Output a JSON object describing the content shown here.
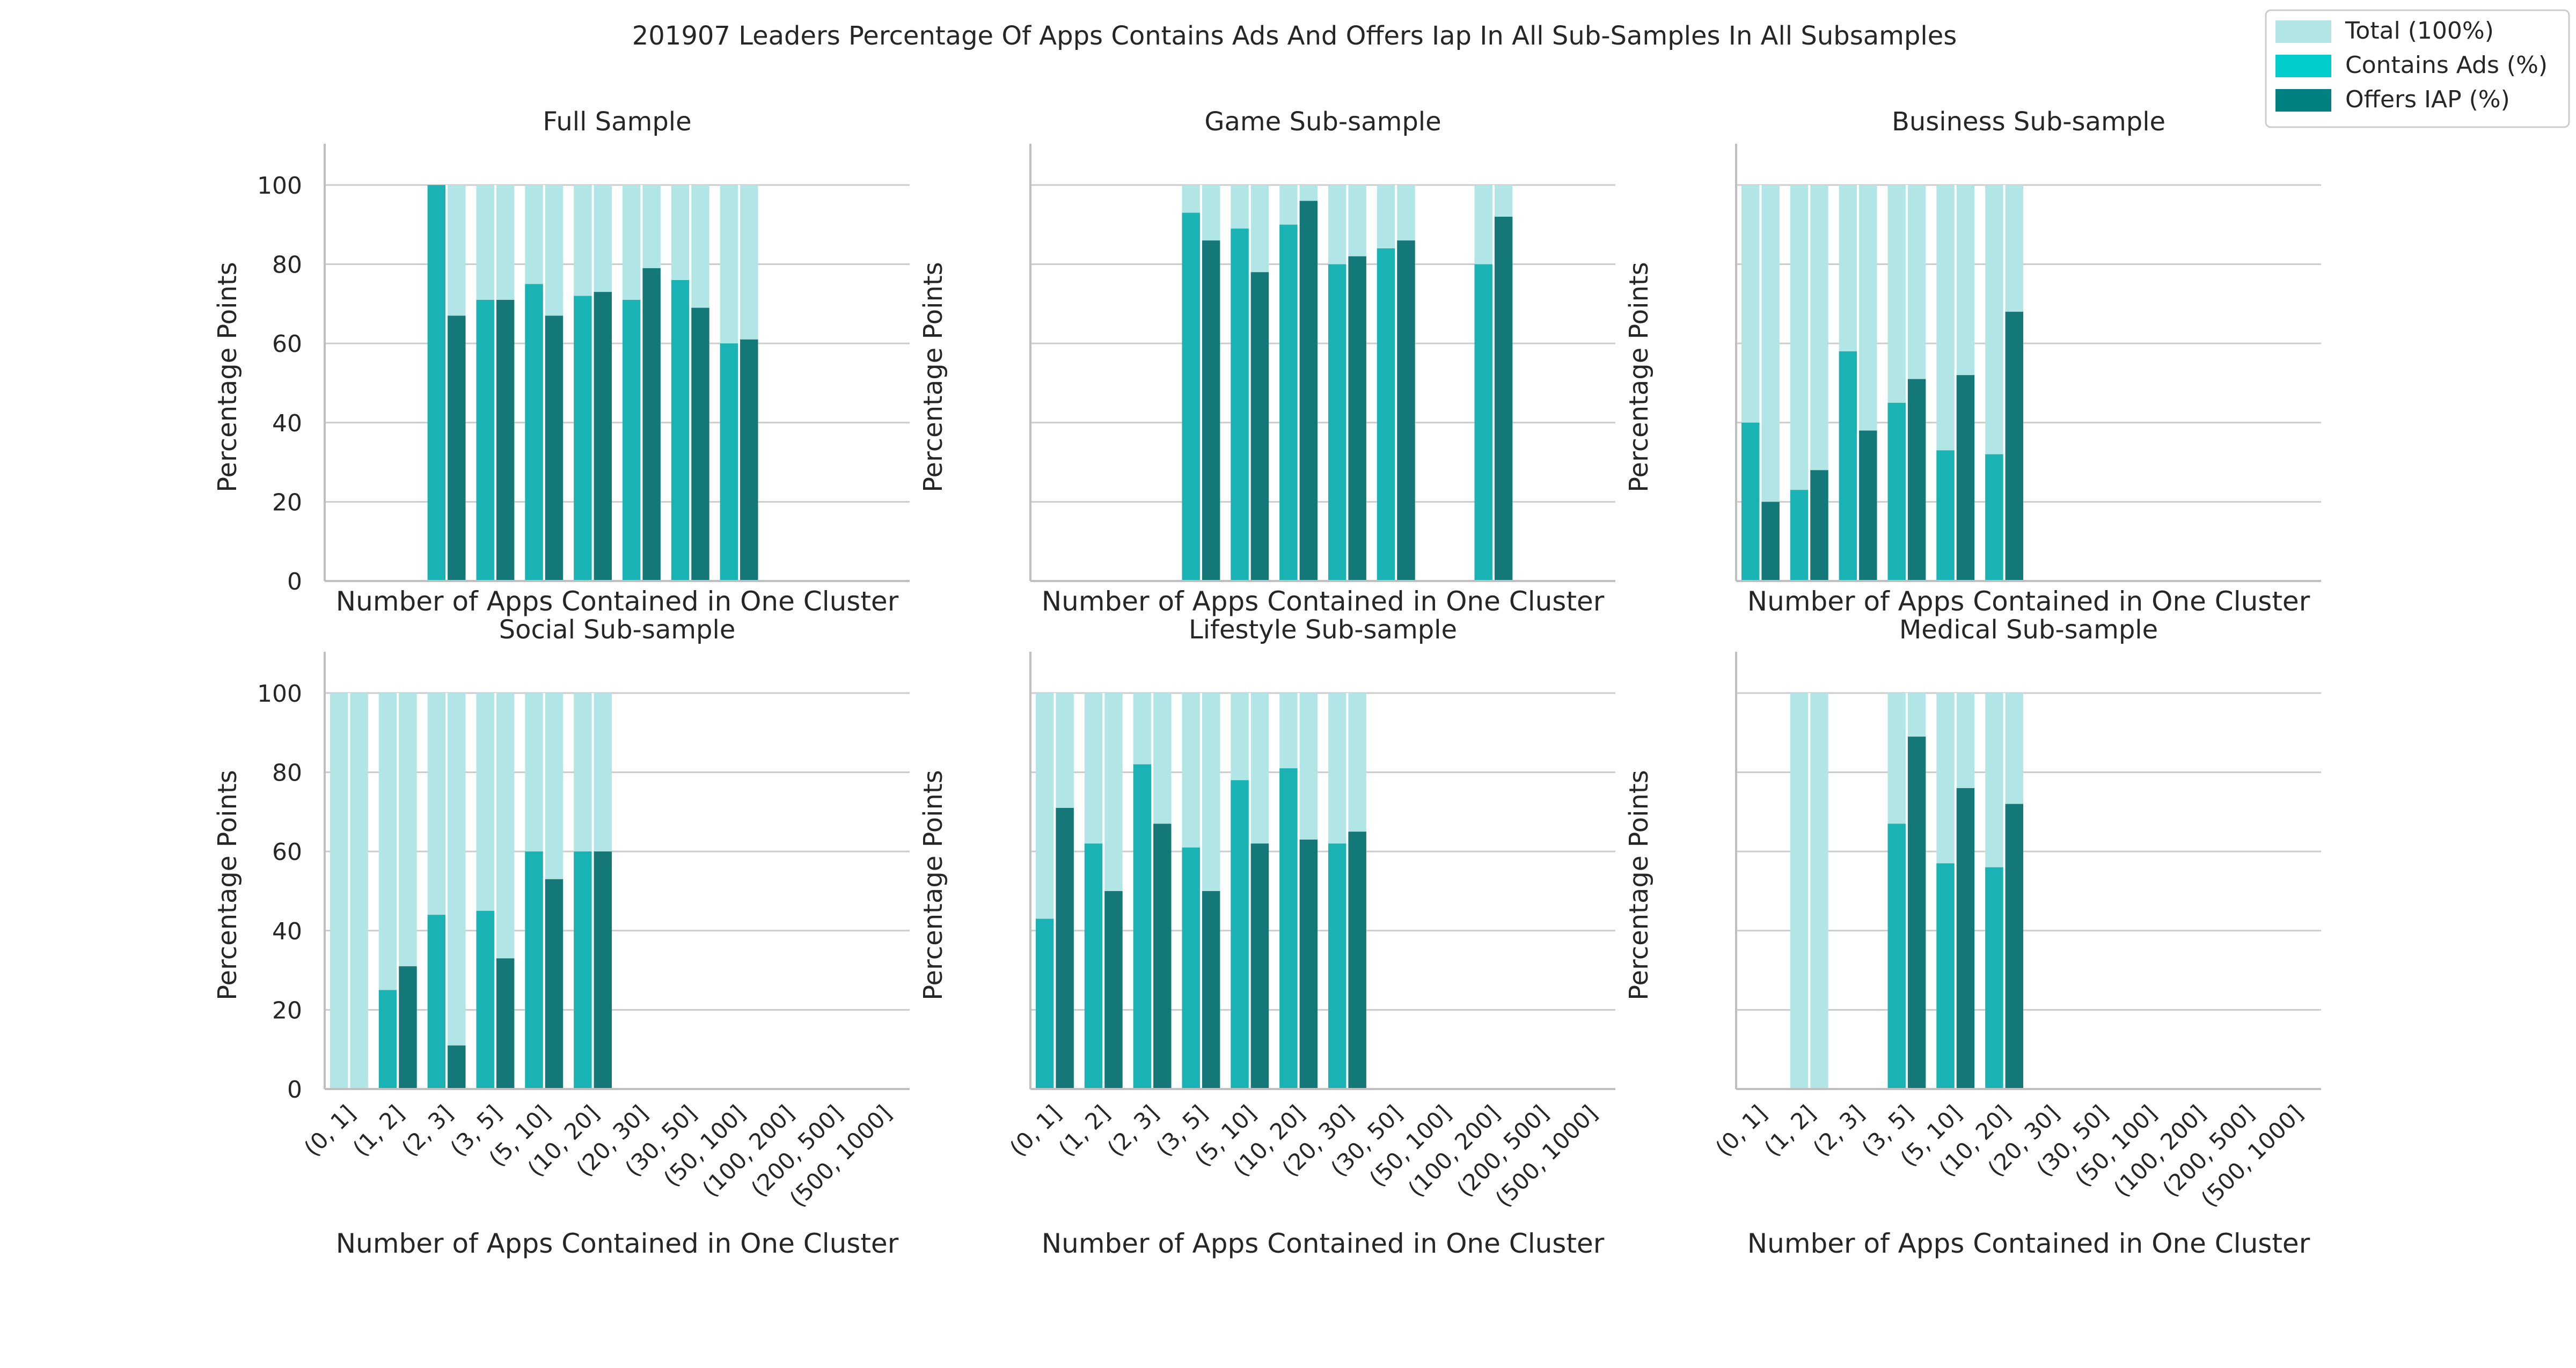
{
  "figure_title": "201907 Leaders Percentage Of Apps Contains Ads And Offers Iap In All Sub-Samples In All Subsamples",
  "legend": {
    "items": [
      {
        "label": "Total (100%)",
        "color": "#b2e6e6"
      },
      {
        "label": "Contains Ads (%)",
        "color": "#00cccc"
      },
      {
        "label": "Offers IAP (%)",
        "color": "#008080"
      }
    ],
    "placement": "top-right"
  },
  "colors": {
    "total": "#b2e6e6",
    "ads": "#1ab3b3",
    "iap": "#147878",
    "grid": "#cccccc",
    "axis": "#bfbfbf"
  },
  "chart_data": [
    {
      "type": "bar",
      "stacked_overlay": true,
      "title": "Full Sample",
      "xlabel": "Number of Apps Contained in One Cluster",
      "ylabel": "Percentage Points",
      "ylim": [
        0,
        105
      ],
      "yticks": [
        "0",
        "20",
        "40",
        "60",
        "80",
        "100"
      ],
      "categories": [
        "(0, 1]",
        "(1, 2]",
        "(2, 3]",
        "(3, 5]",
        "(5, 10]",
        "(10, 20]",
        "(20, 30]",
        "(30, 50]",
        "(50, 100]",
        "(100, 200]",
        "(200, 500]",
        "(500, 1000]"
      ],
      "show_xticks": false,
      "series": [
        {
          "name": "Total (100%)",
          "values": [
            null,
            null,
            100,
            100,
            100,
            100,
            100,
            100,
            100,
            null,
            null,
            null
          ]
        },
        {
          "name": "Contains Ads (%)",
          "values": [
            null,
            null,
            100,
            71,
            75,
            72,
            71,
            76,
            60,
            null,
            null,
            null
          ]
        },
        {
          "name": "Offers IAP (%)",
          "values": [
            null,
            null,
            67,
            71,
            67,
            73,
            79,
            69,
            61,
            null,
            null,
            null
          ]
        }
      ]
    },
    {
      "type": "bar",
      "stacked_overlay": true,
      "title": "Game Sub-sample",
      "xlabel": "Number of Apps Contained in One Cluster",
      "ylabel": "Percentage Points",
      "ylim": [
        0,
        105
      ],
      "yticks": [],
      "categories": [
        "(0, 1]",
        "(1, 2]",
        "(2, 3]",
        "(3, 5]",
        "(5, 10]",
        "(10, 20]",
        "(20, 30]",
        "(30, 50]",
        "(50, 100]",
        "(100, 200]",
        "(200, 500]",
        "(500, 1000]"
      ],
      "show_xticks": false,
      "series": [
        {
          "name": "Total (100%)",
          "values": [
            null,
            null,
            null,
            100,
            100,
            100,
            100,
            100,
            null,
            100,
            null,
            null
          ]
        },
        {
          "name": "Contains Ads (%)",
          "values": [
            null,
            null,
            null,
            93,
            89,
            90,
            80,
            84,
            null,
            80,
            null,
            null
          ]
        },
        {
          "name": "Offers IAP (%)",
          "values": [
            null,
            null,
            null,
            86,
            78,
            96,
            82,
            86,
            null,
            92,
            null,
            null
          ]
        }
      ]
    },
    {
      "type": "bar",
      "stacked_overlay": true,
      "title": "Business Sub-sample",
      "xlabel": "Number of Apps Contained in One Cluster",
      "ylabel": "Percentage Points",
      "ylim": [
        0,
        105
      ],
      "yticks": [],
      "categories": [
        "(0, 1]",
        "(1, 2]",
        "(2, 3]",
        "(3, 5]",
        "(5, 10]",
        "(10, 20]",
        "(20, 30]",
        "(30, 50]",
        "(50, 100]",
        "(100, 200]",
        "(200, 500]",
        "(500, 1000]"
      ],
      "show_xticks": false,
      "series": [
        {
          "name": "Total (100%)",
          "values": [
            100,
            100,
            100,
            100,
            100,
            100,
            null,
            null,
            null,
            null,
            null,
            null
          ]
        },
        {
          "name": "Contains Ads (%)",
          "values": [
            40,
            23,
            58,
            45,
            33,
            32,
            null,
            null,
            null,
            null,
            null,
            null
          ]
        },
        {
          "name": "Offers IAP (%)",
          "values": [
            20,
            28,
            38,
            51,
            52,
            68,
            null,
            null,
            null,
            null,
            null,
            null
          ]
        }
      ]
    },
    {
      "type": "bar",
      "stacked_overlay": true,
      "title": "Social Sub-sample",
      "xlabel": "Number of Apps Contained in One Cluster",
      "ylabel": "Percentage Points",
      "ylim": [
        0,
        105
      ],
      "yticks": [
        "0",
        "20",
        "40",
        "60",
        "80",
        "100"
      ],
      "categories": [
        "(0, 1]",
        "(1, 2]",
        "(2, 3]",
        "(3, 5]",
        "(5, 10]",
        "(10, 20]",
        "(20, 30]",
        "(30, 50]",
        "(50, 100]",
        "(100, 200]",
        "(200, 500]",
        "(500, 1000]"
      ],
      "show_xticks": true,
      "series": [
        {
          "name": "Total (100%)",
          "values": [
            100,
            100,
            100,
            100,
            100,
            100,
            null,
            null,
            null,
            null,
            null,
            null
          ]
        },
        {
          "name": "Contains Ads (%)",
          "values": [
            0,
            25,
            44,
            45,
            60,
            60,
            null,
            null,
            null,
            null,
            null,
            null
          ]
        },
        {
          "name": "Offers IAP (%)",
          "values": [
            0,
            31,
            11,
            33,
            53,
            60,
            null,
            null,
            null,
            null,
            null,
            null
          ]
        }
      ]
    },
    {
      "type": "bar",
      "stacked_overlay": true,
      "title": "Lifestyle Sub-sample",
      "xlabel": "Number of Apps Contained in One Cluster",
      "ylabel": "Percentage Points",
      "ylim": [
        0,
        105
      ],
      "yticks": [],
      "categories": [
        "(0, 1]",
        "(1, 2]",
        "(2, 3]",
        "(3, 5]",
        "(5, 10]",
        "(10, 20]",
        "(20, 30]",
        "(30, 50]",
        "(50, 100]",
        "(100, 200]",
        "(200, 500]",
        "(500, 1000]"
      ],
      "show_xticks": true,
      "series": [
        {
          "name": "Total (100%)",
          "values": [
            100,
            100,
            100,
            100,
            100,
            100,
            100,
            null,
            null,
            null,
            null,
            null
          ]
        },
        {
          "name": "Contains Ads (%)",
          "values": [
            43,
            62,
            82,
            61,
            78,
            81,
            62,
            null,
            null,
            null,
            null,
            null
          ]
        },
        {
          "name": "Offers IAP (%)",
          "values": [
            71,
            50,
            67,
            50,
            62,
            63,
            65,
            null,
            null,
            null,
            null,
            null
          ]
        }
      ]
    },
    {
      "type": "bar",
      "stacked_overlay": true,
      "title": "Medical Sub-sample",
      "xlabel": "Number of Apps Contained in One Cluster",
      "ylabel": "Percentage Points",
      "ylim": [
        0,
        105
      ],
      "yticks": [],
      "categories": [
        "(0, 1]",
        "(1, 2]",
        "(2, 3]",
        "(3, 5]",
        "(5, 10]",
        "(10, 20]",
        "(20, 30]",
        "(30, 50]",
        "(50, 100]",
        "(100, 200]",
        "(200, 500]",
        "(500, 1000]"
      ],
      "show_xticks": true,
      "series": [
        {
          "name": "Total (100%)",
          "values": [
            null,
            100,
            null,
            100,
            100,
            100,
            null,
            null,
            null,
            null,
            null,
            null
          ]
        },
        {
          "name": "Contains Ads (%)",
          "values": [
            null,
            0,
            null,
            67,
            57,
            56,
            null,
            null,
            null,
            null,
            null,
            null
          ]
        },
        {
          "name": "Offers IAP (%)",
          "values": [
            null,
            0,
            null,
            89,
            76,
            72,
            null,
            null,
            null,
            null,
            null,
            null
          ]
        }
      ]
    }
  ]
}
